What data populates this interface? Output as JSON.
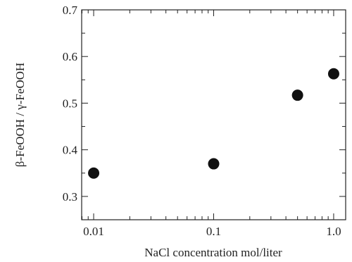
{
  "chart_data": {
    "type": "scatter",
    "title": "",
    "xlabel": "NaCl concentration mol/liter",
    "ylabel": "β-FeOOH / γ-FeOOH",
    "xscale": "log",
    "xlim": [
      0.01,
      1.0
    ],
    "ylim": [
      0.25,
      0.7
    ],
    "grid": false,
    "legend": "none",
    "marker_color": "#111111",
    "x_ticks": [
      {
        "value": 0.01,
        "label": "0.01"
      },
      {
        "value": 0.1,
        "label": "0.1"
      },
      {
        "value": 1.0,
        "label": "1.0"
      }
    ],
    "y_ticks": [
      {
        "value": 0.3,
        "label": "0.3"
      },
      {
        "value": 0.4,
        "label": "0.4"
      },
      {
        "value": 0.5,
        "label": "0.5"
      },
      {
        "value": 0.6,
        "label": "0.6"
      },
      {
        "value": 0.7,
        "label": "0.7"
      }
    ],
    "series": [
      {
        "points": [
          {
            "x": 0.01,
            "y": 0.35
          },
          {
            "x": 0.1,
            "y": 0.37
          },
          {
            "x": 0.5,
            "y": 0.517
          },
          {
            "x": 1.0,
            "y": 0.563
          }
        ]
      }
    ]
  }
}
